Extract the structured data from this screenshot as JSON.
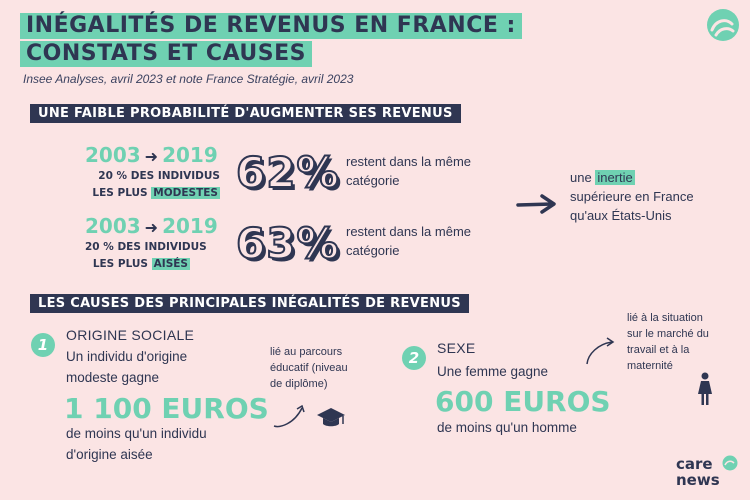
{
  "header": {
    "title_line1": "INÉGALITÉS DE REVENUS EN FRANCE :",
    "title_line2": "CONSTATS ET CAUSES",
    "source": "Insee Analyses, avril 2023 et note France Stratégie, avril 2023"
  },
  "section1": {
    "heading": "UNE FAIBLE PROBABILITÉ D'AUGMENTER SES REVENUS",
    "rows": [
      {
        "year_from": "2003",
        "year_to": "2019",
        "group_line1": "20 % DES INDIVIDUS",
        "group_line2_prefix": "LES PLUS",
        "group_highlight": "MODESTES",
        "percent": "62%",
        "desc_line1": "restent dans la même",
        "desc_line2": "catégorie"
      },
      {
        "year_from": "2003",
        "year_to": "2019",
        "group_line1": "20 % DES INDIVIDUS",
        "group_line2_prefix": "LES PLUS",
        "group_highlight": "AISÉS",
        "percent": "63%",
        "desc_line1": "restent dans la même",
        "desc_line2": "catégorie"
      }
    ],
    "conclusion": {
      "prefix": "une",
      "highlight": "inertie",
      "line2": "supérieure en France",
      "line3": "qu'aux États-Unis"
    }
  },
  "section2": {
    "heading": "LES CAUSES DES PRINCIPALES INÉGALITÉS DE REVENUS",
    "cause1": {
      "number": "1",
      "title": "ORIGINE SOCIALE",
      "line1": "Un individu d'origine",
      "line2": "modeste gagne",
      "amount": "1 100 EUROS",
      "line3": "de moins qu'un individu",
      "line4": "d'origine aisée",
      "note_line1": "lié au parcours",
      "note_line2": "éducatif (niveau",
      "note_line3": "de diplôme)",
      "icon": "graduation-cap-icon"
    },
    "cause2": {
      "number": "2",
      "title": "SEXE",
      "line1": "Une femme gagne",
      "amount": "600 EUROS",
      "line2": "de moins qu'un homme",
      "note_line1": "lié à la situation",
      "note_line2": "sur le marché du",
      "note_line3": "travail et à la",
      "note_line4": "maternité",
      "icon": "woman-icon"
    }
  },
  "brand": {
    "line1": "care",
    "line2": "news",
    "icon": "wave-logo-icon"
  },
  "colors": {
    "background": "#fbe4e4",
    "accent": "#6fd1b2",
    "navy": "#2f3652"
  }
}
